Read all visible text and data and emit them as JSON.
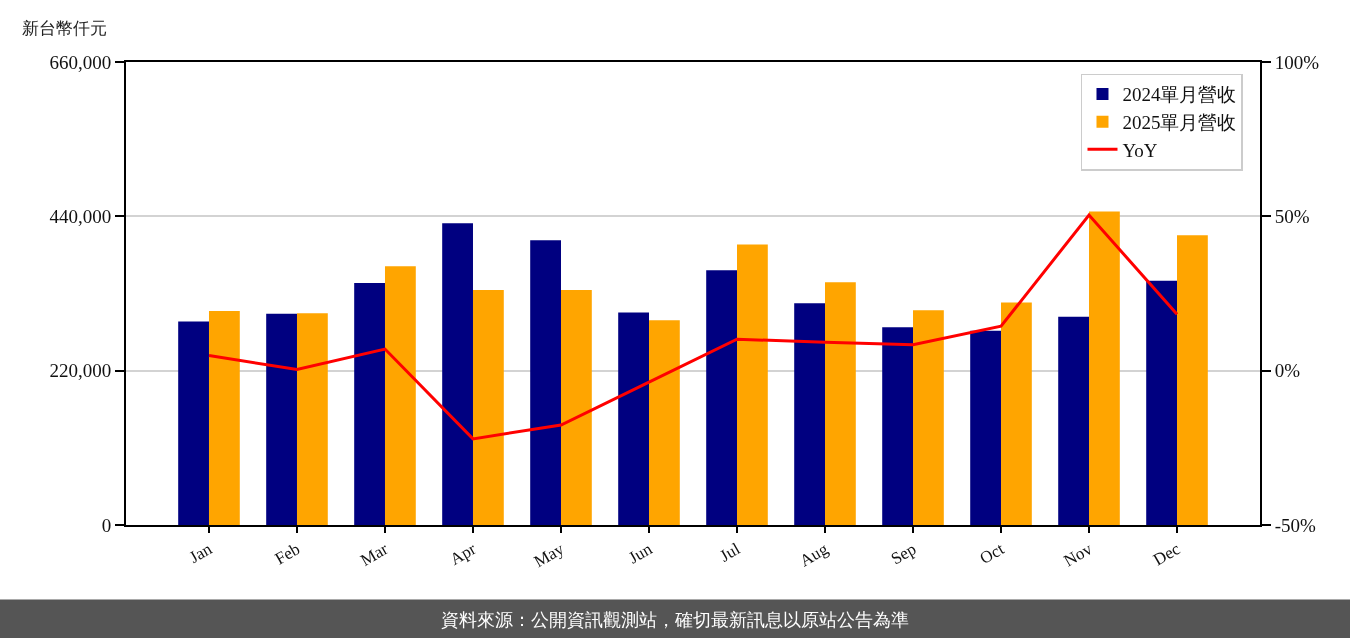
{
  "chart_data": {
    "type": "bar",
    "ylabel": "新台幣仟元",
    "categories": [
      "Jan",
      "Feb",
      "Mar",
      "Apr",
      "May",
      "Jun",
      "Jul",
      "Aug",
      "Sep",
      "Oct",
      "Nov",
      "Dec"
    ],
    "series": [
      {
        "name": "2024單月營收",
        "color": "#000080",
        "values": [
          290000,
          301000,
          345000,
          430000,
          406000,
          303000,
          363000,
          316000,
          282000,
          277000,
          297000,
          348000
        ]
      },
      {
        "name": "2025單月營收",
        "color": "#ffa500",
        "values": [
          305000,
          302000,
          369000,
          335000,
          335000,
          292000,
          400000,
          346000,
          306000,
          317000,
          447000,
          413000
        ]
      },
      {
        "name": "YoY",
        "type": "line",
        "axis": "y2",
        "color": "#ff0000",
        "values": [
          4.9,
          0.4,
          7.0,
          -22.1,
          -17.6,
          -3.7,
          10.2,
          9.2,
          8.4,
          14.4,
          50.4,
          18.3
        ]
      }
    ],
    "ylim": [
      0,
      660000
    ],
    "yticks": [
      0,
      {
        "value": 220000,
        "label": "220,000"
      },
      {
        "value": 440000,
        "label": "440,000"
      },
      {
        "value": 660000,
        "label": "660,000"
      }
    ],
    "y2lim": [
      -50,
      100
    ],
    "y2ticks": [
      {
        "value": -50,
        "label": "-50%"
      },
      {
        "value": 0,
        "label": "0%"
      },
      {
        "value": 50,
        "label": "50%"
      },
      {
        "value": 100,
        "label": "100%"
      }
    ],
    "grid": "y",
    "legend": "top right",
    "annotations": [
      "資料來源：公開資訊觀測站，確切最新訊息以原站公告為準"
    ]
  }
}
